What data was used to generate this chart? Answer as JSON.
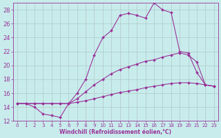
{
  "xlabel": "Windchill (Refroidissement éolien,°C)",
  "background_color": "#c8ecec",
  "grid_color": "#b0c8c8",
  "line_color": "#993399",
  "xlim": [
    -0.5,
    23.5
  ],
  "ylim": [
    12,
    29
  ],
  "xticks": [
    0,
    1,
    2,
    3,
    4,
    5,
    6,
    7,
    8,
    9,
    10,
    11,
    12,
    13,
    14,
    15,
    16,
    17,
    18,
    19,
    20,
    21,
    22,
    23
  ],
  "yticks": [
    12,
    14,
    16,
    18,
    20,
    22,
    24,
    26,
    28
  ],
  "series": [
    [
      14.5,
      14.5,
      14.0,
      13.0,
      12.8,
      12.5,
      14.5,
      16.0,
      18.0,
      21.5,
      24.0,
      25.0,
      27.2,
      27.5,
      27.2,
      26.8,
      29.0,
      28.0,
      27.6,
      22.0,
      21.8,
      19.0,
      17.2,
      17.0
    ],
    [
      14.5,
      14.5,
      14.5,
      14.5,
      14.5,
      14.5,
      14.5,
      15.2,
      16.2,
      17.2,
      18.0,
      18.8,
      19.4,
      19.8,
      20.2,
      20.6,
      20.8,
      21.2,
      21.5,
      21.8,
      21.5,
      20.5,
      17.2,
      17.0
    ],
    [
      14.5,
      14.5,
      14.5,
      14.5,
      14.5,
      14.5,
      14.5,
      14.7,
      14.9,
      15.2,
      15.5,
      15.8,
      16.1,
      16.3,
      16.5,
      16.8,
      17.0,
      17.2,
      17.4,
      17.5,
      17.5,
      17.4,
      17.2,
      17.0
    ]
  ]
}
